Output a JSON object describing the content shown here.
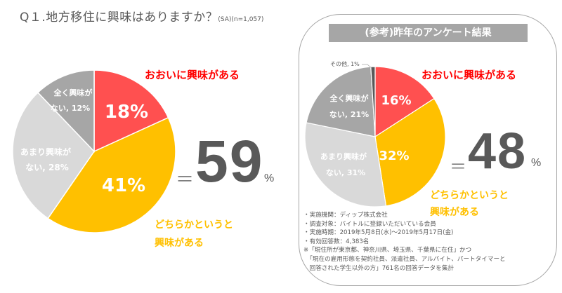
{
  "title": {
    "question": "Q１.地方移住に興味はありますか？",
    "meta": "(SA)(n=1,057)"
  },
  "colors": {
    "very_interested": "#ff5050",
    "somewhat": "#ffc000",
    "not_much": "#d9d9d9",
    "not_at_all": "#a6a6a6",
    "other": "#595959"
  },
  "chart_data": [
    {
      "type": "pie",
      "title": "Q１.地方移住に興味はありますか？",
      "series": [
        {
          "name": "おおいに興味がある",
          "value": 18,
          "label": "18%"
        },
        {
          "name": "どちらかというと興味がある",
          "value": 41,
          "label": "41%"
        },
        {
          "name": "あまり興味がない",
          "value": 28,
          "label_line1": "あまり興味が",
          "label_line2": "ない, 28%"
        },
        {
          "name": "全く興味がない",
          "value": 12,
          "label_line1": "全く興味が",
          "label_line2": "ない, 12%"
        }
      ],
      "summary": {
        "eq": "＝",
        "value": "59",
        "unit": "%"
      }
    },
    {
      "type": "pie",
      "title": "(参考)昨年のアンケート結果",
      "series": [
        {
          "name": "おおいに興味がある",
          "value": 16,
          "label": "16%"
        },
        {
          "name": "どちらかというと興味がある",
          "value": 32,
          "label": "32%"
        },
        {
          "name": "あまり興味がない",
          "value": 31,
          "label_line1": "あまり興味が",
          "label_line2": "ない, 31%"
        },
        {
          "name": "全く興味がない",
          "value": 21,
          "label_line1": "全く興味が",
          "label_line2": "ない, 21%"
        },
        {
          "name": "その他",
          "value": 1,
          "label": "その他, 1%"
        }
      ],
      "summary": {
        "eq": "＝",
        "value": "48",
        "unit": "%"
      }
    }
  ],
  "legend": {
    "very_interested": "おおいに興味がある",
    "somewhat_line1": "どちらかというと",
    "somewhat_line2": "興味がある"
  },
  "reference": {
    "title": "(参考)昨年のアンケート結果",
    "notes": [
      "・実施機関：ディップ株式会社",
      "・調査対象：バイトルに登録いただいている会員",
      "・実施時期：2019年5月8日(水)～2019年5月17日(金)",
      "・有効回答数：4,383名",
      "※「現住所が東京都、神奈川県、埼玉県、千葉県に在住」かつ",
      "　「現在の雇用形態を契約社員、派遣社員、アルバイト、パートタイマーと",
      "　回答された学生以外の方」761名の回答データを集計"
    ]
  }
}
